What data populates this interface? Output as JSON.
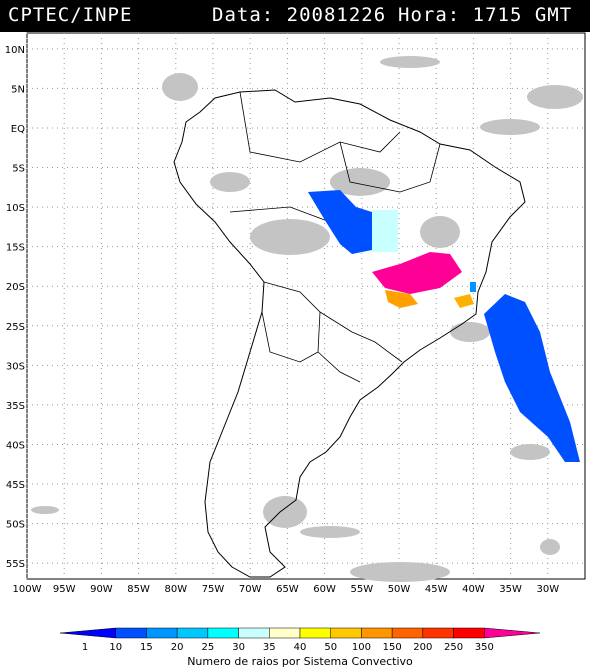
{
  "header": {
    "left": "CPTEC/INPE",
    "date_text": "Data: 20081226",
    "hour_text": "Hora: 1715 GMT"
  },
  "map": {
    "lat_labels": [
      "10N",
      "5N",
      "EQ",
      "5S",
      "10S",
      "15S",
      "20S",
      "25S",
      "30S",
      "35S",
      "40S",
      "45S",
      "50S",
      "55S"
    ],
    "lat_values": [
      10,
      5,
      0,
      -5,
      -10,
      -15,
      -20,
      -25,
      -30,
      -35,
      -40,
      -45,
      -50,
      -55
    ],
    "lon_labels": [
      "100W",
      "95W",
      "90W",
      "85W",
      "80W",
      "75W",
      "70W",
      "65W",
      "60W",
      "55W",
      "50W",
      "45W",
      "40W",
      "35W",
      "30W"
    ],
    "lon_values": [
      -100,
      -95,
      -90,
      -85,
      -80,
      -75,
      -70,
      -65,
      -60,
      -55,
      -50,
      -45,
      -40,
      -35,
      -30
    ],
    "grid": true
  },
  "colorbar": {
    "labels": [
      "1",
      "10",
      "15",
      "20",
      "25",
      "30",
      "35",
      "40",
      "50",
      "100",
      "150",
      "200",
      "250",
      "350"
    ],
    "colors": [
      "#0000ff",
      "#0050ff",
      "#0096ff",
      "#00c8ff",
      "#00ffff",
      "#c8ffff",
      "#ffffc8",
      "#ffff00",
      "#ffc800",
      "#ff9600",
      "#ff6400",
      "#ff3200",
      "#ff0000",
      "#ff0096"
    ],
    "caption": "Numero de raios por Sistema Convectivo"
  },
  "cloud_color": "#c0c0c0",
  "coast_color": "#000000"
}
